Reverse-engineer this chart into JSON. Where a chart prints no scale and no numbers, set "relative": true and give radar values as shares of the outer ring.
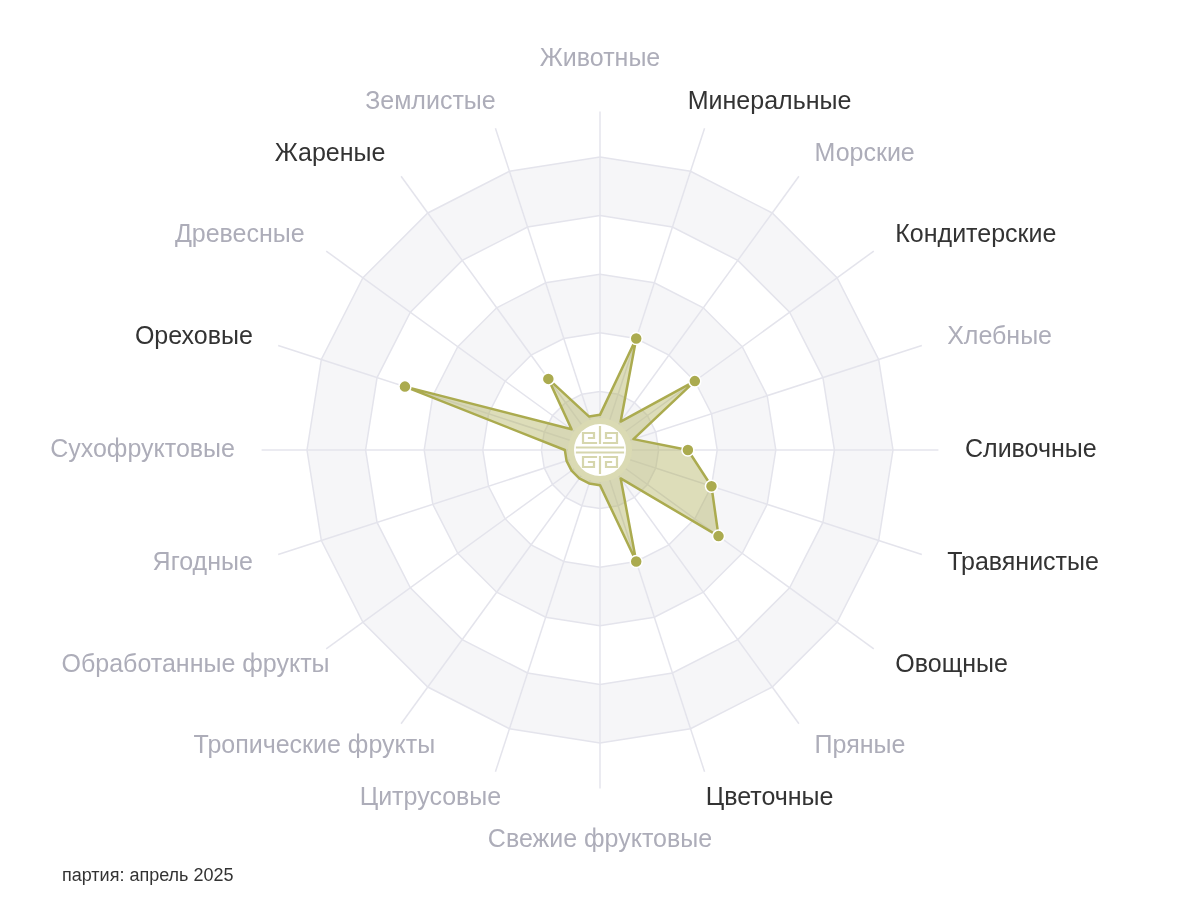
{
  "chart_data": {
    "type": "radar",
    "categories": [
      "Животные",
      "Минеральные",
      "Морские",
      "Кондитерские",
      "Хлебные",
      "Сливочные",
      "Травянистые",
      "Овощные",
      "Пряные",
      "Цветочные",
      "Свежие фруктовые",
      "Цитрусовые",
      "Тропические фрукты",
      "Обработанные фрукты",
      "Ягодные",
      "Сухофруктовые",
      "Ореховые",
      "Древесные",
      "Жареные",
      "Землистые"
    ],
    "series": [
      {
        "color": "#abab4f",
        "values": [
          0.12,
          0.4,
          0.12,
          0.4,
          0.12,
          0.3,
          0.4,
          0.5,
          0.12,
          0.4,
          0.12,
          0.12,
          0.12,
          0.12,
          0.12,
          0.12,
          0.7,
          0.12,
          0.3,
          0.12
        ]
      }
    ],
    "relative": true,
    "marker": "circle",
    "grid": true,
    "legend": false,
    "annotations": [
      "партия: апрель 2025"
    ]
  }
}
